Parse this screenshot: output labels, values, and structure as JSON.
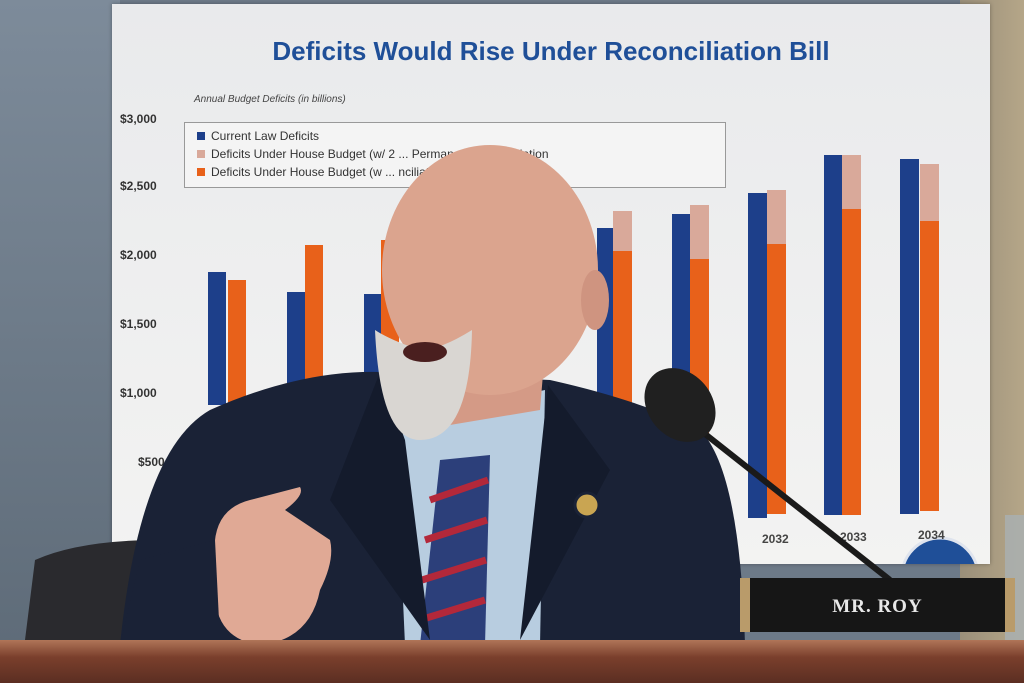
{
  "poster": {
    "title": "Deficits Would Rise Under Reconciliation Bill",
    "subtitle": "Annual Budget Deficits (in billions)",
    "y_ticks": [
      "$3,000",
      "$2,500",
      "$2,000",
      "$1,500",
      "$1,000",
      "$500"
    ],
    "legend": [
      {
        "label": "Current Law Deficits",
        "color": "#1d3f8a"
      },
      {
        "label": "Deficits Under House Budget (w/ 2 ... Permanent Reconciliation",
        "color": "#d9a99a"
      },
      {
        "label": "Deficits Under House Budget (w ... nciliation as Written",
        "color": "#e8611a"
      }
    ],
    "years": [
      "2032",
      "2033",
      "2034"
    ]
  },
  "nameplate": {
    "text": "MR. ROY"
  },
  "colors": {
    "blue_bar": "#1d3f8a",
    "orange_bar": "#e8611a",
    "pink_bar": "#d9a99a",
    "suit": "#1a2236"
  }
}
